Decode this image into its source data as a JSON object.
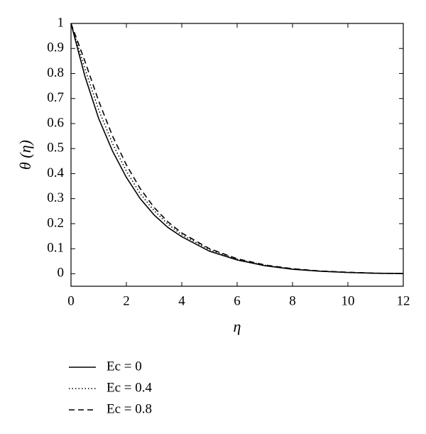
{
  "chart_data": {
    "type": "line",
    "xlabel": "η",
    "ylabel": "θ (η)",
    "x": [
      0,
      0.5,
      1,
      1.5,
      2,
      2.5,
      3,
      3.5,
      4,
      5,
      6,
      7,
      8,
      9,
      10,
      11,
      12
    ],
    "series": [
      {
        "name": "Ec = 0",
        "color": "#000000",
        "style": "solid",
        "values": [
          1,
          0.79,
          0.62,
          0.49,
          0.385,
          0.3,
          0.235,
          0.185,
          0.148,
          0.09,
          0.055,
          0.032,
          0.018,
          0.01,
          0.005,
          0.002,
          0.001
        ]
      },
      {
        "name": "Ec = 0.4",
        "color": "#000000",
        "style": "dotted",
        "values": [
          1,
          0.82,
          0.655,
          0.52,
          0.41,
          0.32,
          0.252,
          0.198,
          0.156,
          0.096,
          0.058,
          0.034,
          0.019,
          0.01,
          0.005,
          0.002,
          0.001
        ]
      },
      {
        "name": "Ec = 0.8",
        "color": "#000000",
        "style": "dashed",
        "values": [
          1,
          0.85,
          0.69,
          0.55,
          0.435,
          0.34,
          0.265,
          0.207,
          0.163,
          0.1,
          0.06,
          0.035,
          0.02,
          0.011,
          0.006,
          0.002,
          0.001
        ]
      }
    ],
    "xlim": [
      0,
      12
    ],
    "xticks": [
      0,
      2,
      4,
      6,
      8,
      10,
      12
    ],
    "ylim": [
      -0.05,
      1
    ],
    "yticks": [
      0,
      0.1,
      0.2,
      0.3,
      0.4,
      0.5,
      0.6,
      0.7,
      0.8,
      0.9,
      1
    ],
    "grid": false,
    "legend": "below-left"
  }
}
